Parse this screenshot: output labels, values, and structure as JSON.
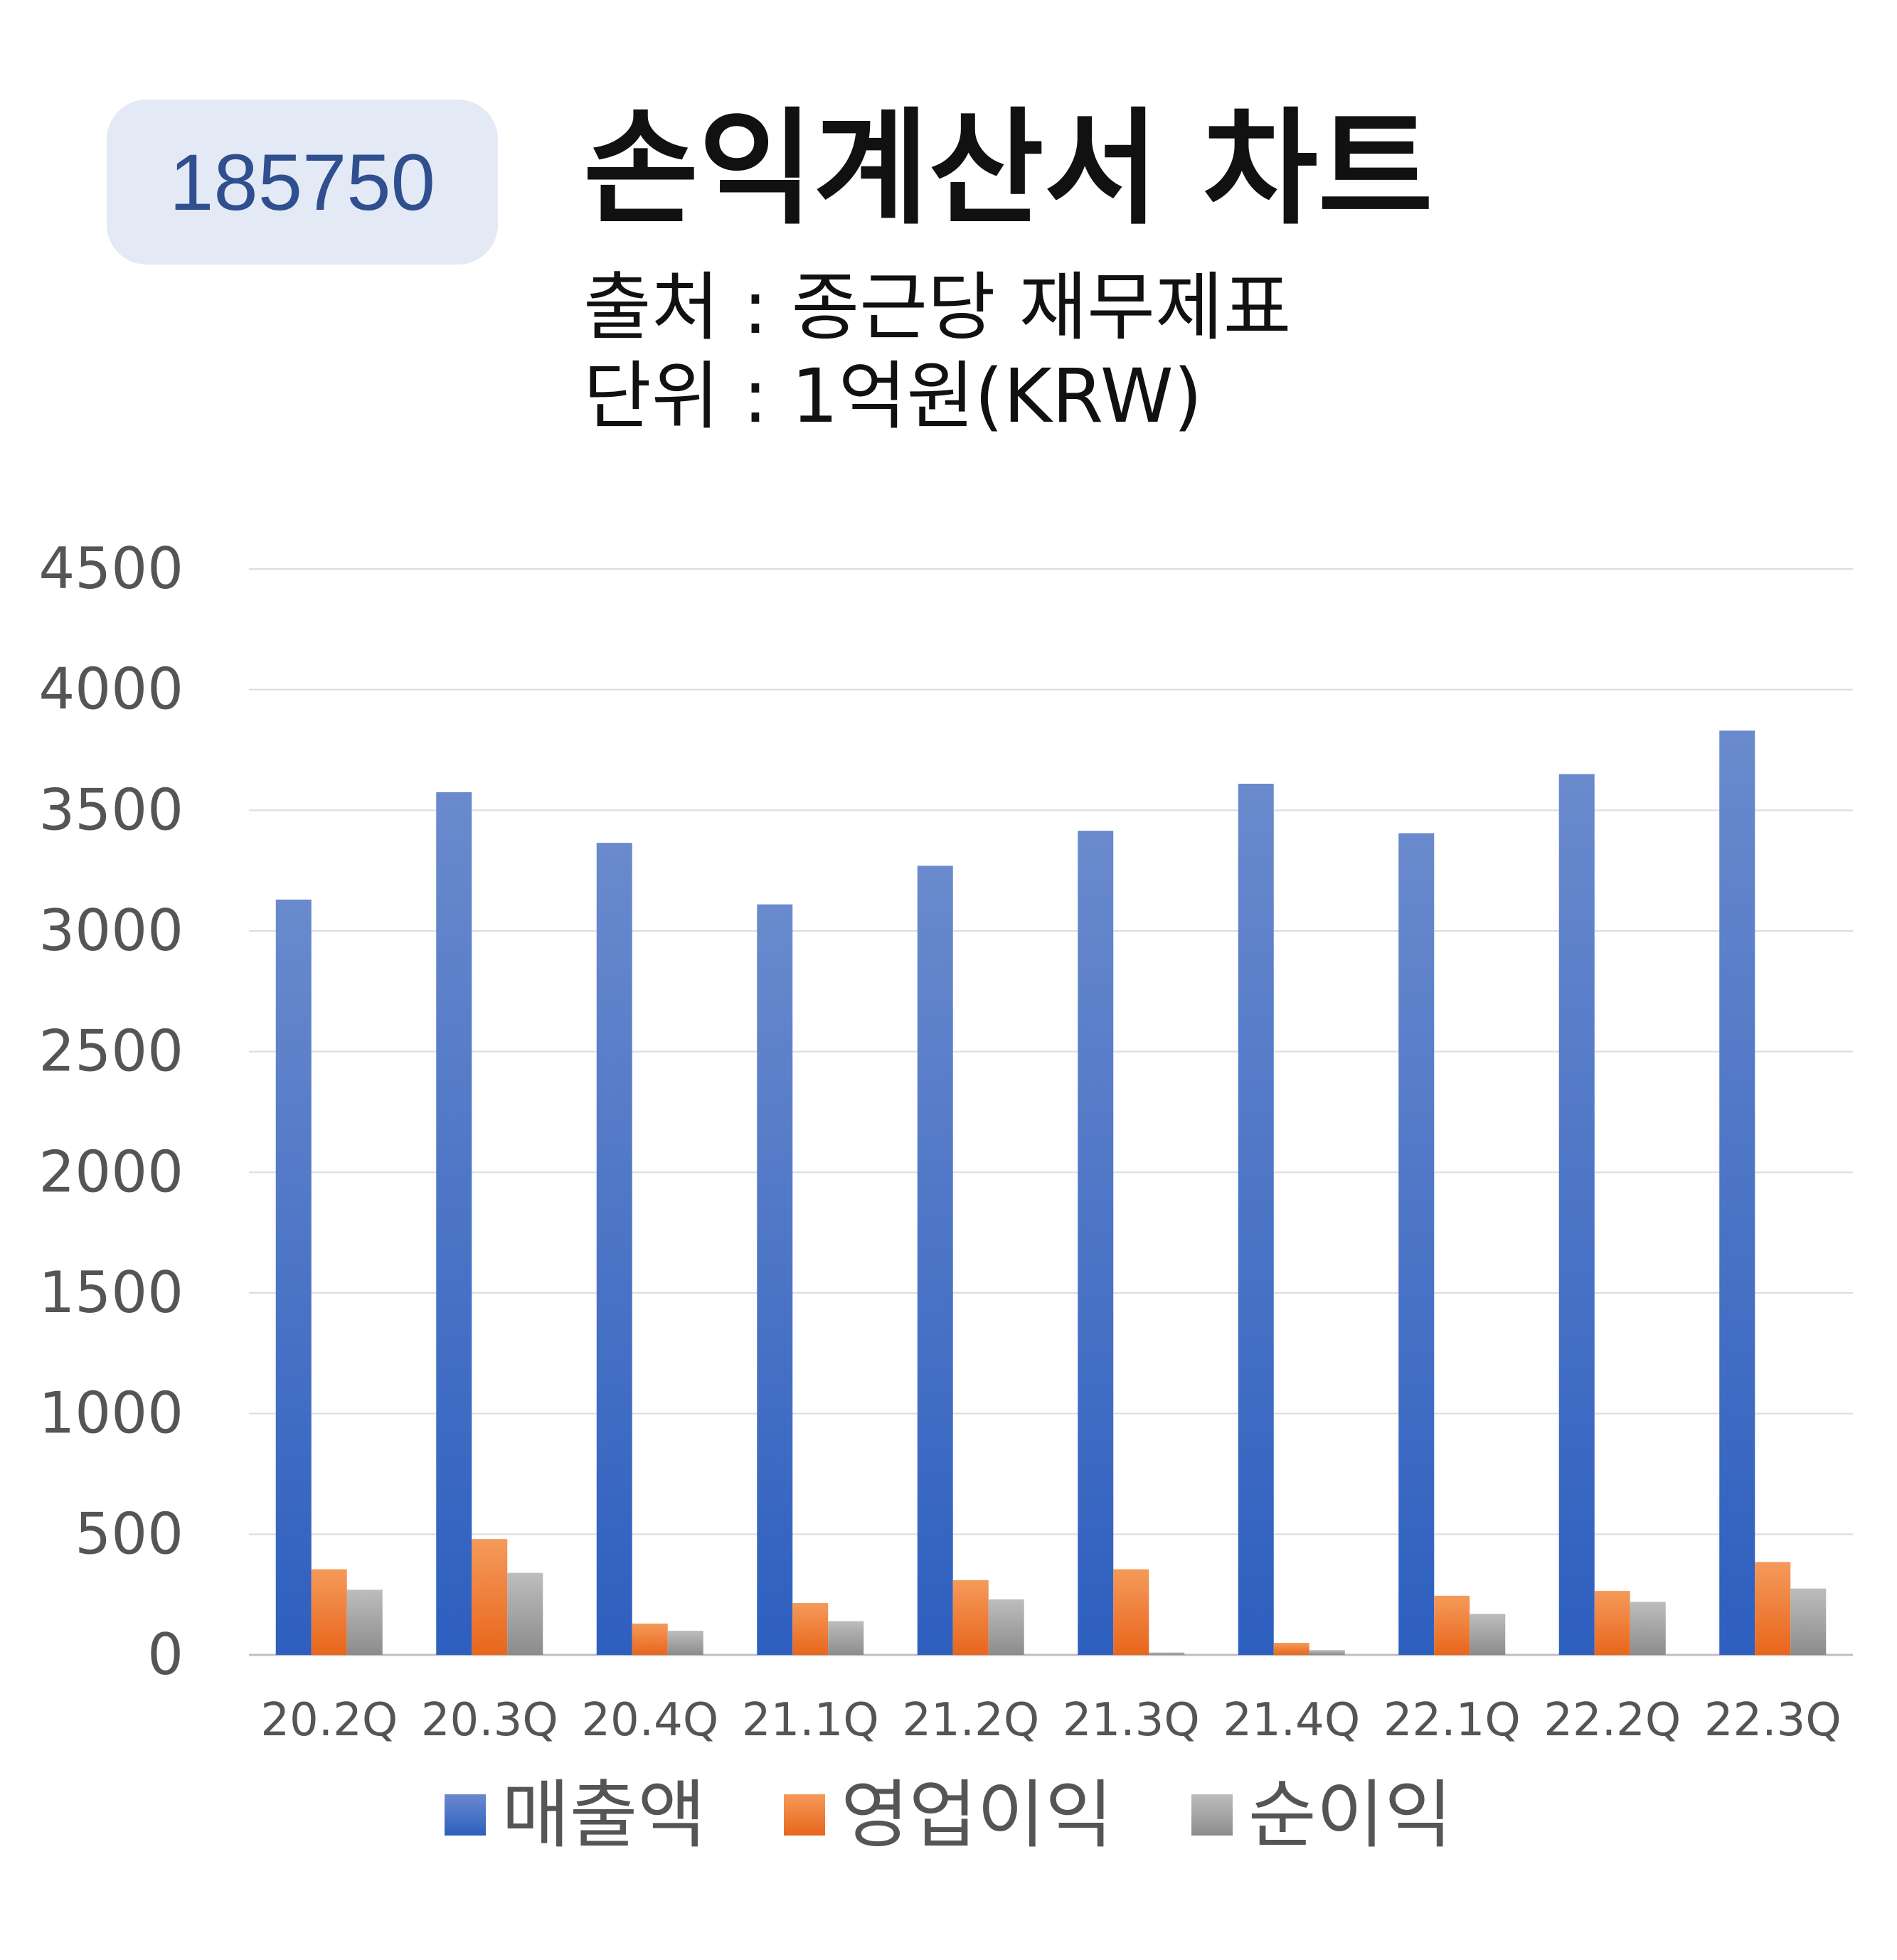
{
  "badge": {
    "code": "185750"
  },
  "header": {
    "title": "손익계산서 차트",
    "source": "출처 : 종근당 재무제표",
    "unit": "단위 : 1억원(KRW)"
  },
  "colors": {
    "revenue": "#3f6ac8",
    "operating_profit": "#ef7a2e",
    "net_profit": "#a0a0a0",
    "badge_bg": "#e3e9f5",
    "badge_text": "#2f4f8f"
  },
  "chart_data": {
    "type": "bar",
    "categories": [
      "20.2Q",
      "20.3Q",
      "20.4Q",
      "21.1Q",
      "21.2Q",
      "21.3Q",
      "21.4Q",
      "22.1Q",
      "22.2Q",
      "22.3Q"
    ],
    "series": [
      {
        "name": "매출액",
        "values": [
          3130,
          3575,
          3365,
          3110,
          3270,
          3415,
          3610,
          3405,
          3650,
          3830
        ]
      },
      {
        "name": "영업이익",
        "values": [
          355,
          480,
          130,
          215,
          310,
          355,
          50,
          245,
          265,
          385
        ]
      },
      {
        "name": "순이익",
        "values": [
          270,
          340,
          100,
          140,
          230,
          10,
          20,
          170,
          220,
          275
        ]
      }
    ],
    "ylim": [
      0,
      4500
    ],
    "yticks": [
      "0",
      "500",
      "1000",
      "1500",
      "2000",
      "2500",
      "3000",
      "3500",
      "4000",
      "4500"
    ],
    "grid": true,
    "legend_position": "bottom"
  }
}
